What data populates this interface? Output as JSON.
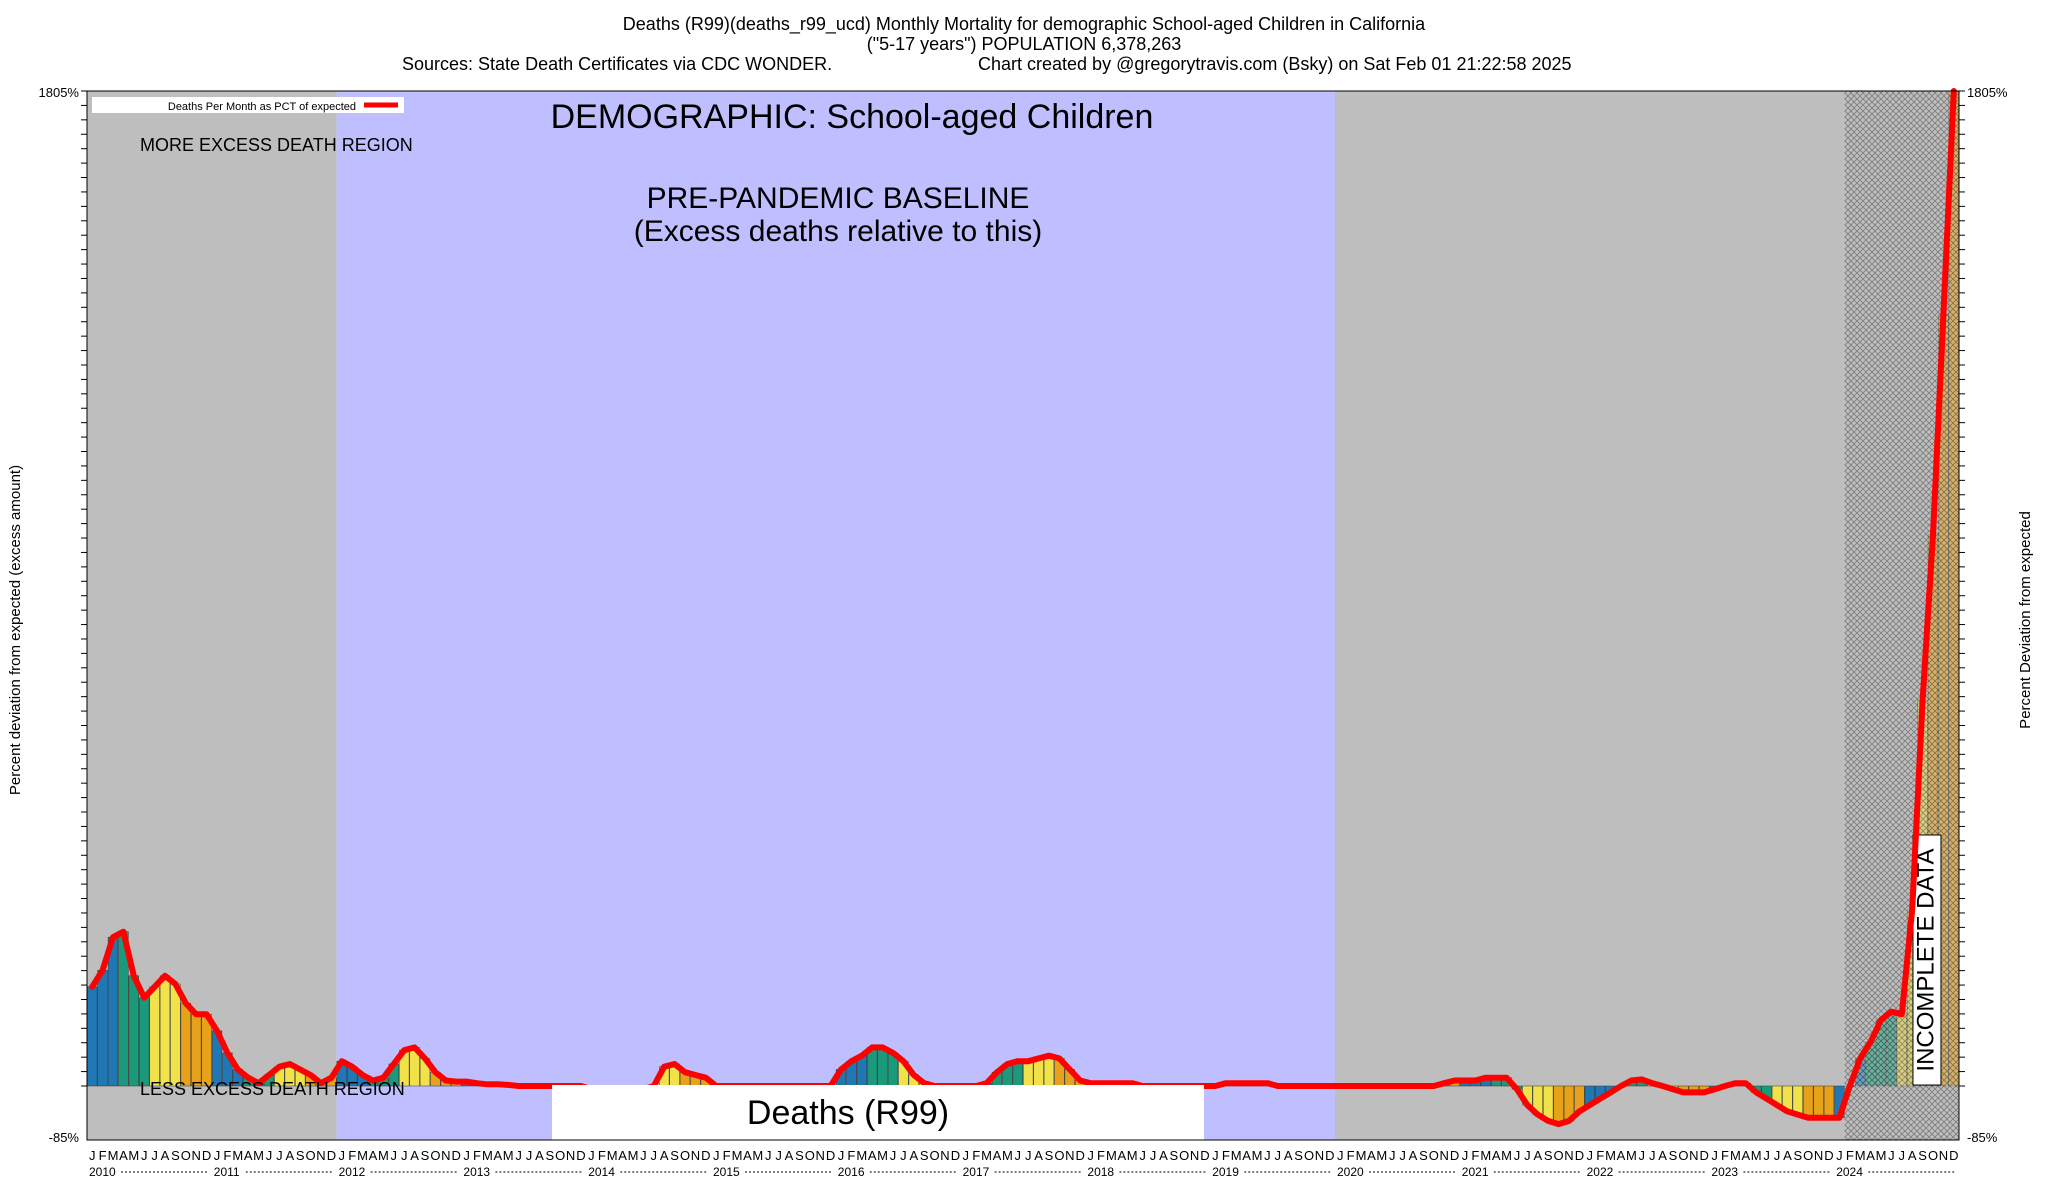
{
  "header": {
    "title_line1": "Deaths (R99)(deaths_r99_ucd) Monthly Mortality for demographic School-aged Children in California",
    "title_line2": "(\"5-17 years\") POPULATION 6,378,263",
    "sources": "Sources: State Death Certificates via CDC WONDER.",
    "credit": "Chart created by @gregorytravis.com (Bsky) on Sat Feb 01 21:22:58 2025"
  },
  "colors": {
    "background": "#ffffff",
    "gray_region": "#bebebe",
    "baseline_region": "#bfbfff",
    "line": "#ff0000",
    "bar_palette": [
      "#1f77b4",
      "#1a9a7a",
      "#f2e24a",
      "#e8a21a"
    ]
  },
  "chart_data": {
    "type": "bar",
    "title": "DEMOGRAPHIC: School-aged Children",
    "subtitle": "Deaths (R99)",
    "ylabel": "Percent deviation from expected (excess amount)",
    "ylabel_right": "Percent Deviation from expected",
    "legend": {
      "label": "Deaths Per Month as PCT of expected",
      "position": "top-left"
    },
    "x_start": "2010-01",
    "x_end": "2024-12",
    "ylim": [
      -85,
      1805
    ],
    "y_tick_min": "-85%",
    "y_tick_max": "1805%",
    "annotations": {
      "more_excess": "MORE EXCESS DEATH REGION",
      "less_excess": "LESS EXCESS DEATH REGION",
      "baseline_line1": "PRE-PANDEMIC BASELINE",
      "baseline_line2": "(Excess deaths relative to this)",
      "incomplete": "INCOMPLETE DATA"
    },
    "regions": [
      {
        "type": "gray",
        "from": "2010-01",
        "to": "2011-12"
      },
      {
        "type": "baseline",
        "from": "2012-01",
        "to": "2019-12"
      },
      {
        "type": "gray",
        "from": "2020-01",
        "to": "2024-12"
      },
      {
        "type": "incomplete",
        "from": "2024-02",
        "to": "2024-12"
      }
    ],
    "month_letters": [
      "J",
      "F",
      "M",
      "A",
      "M",
      "J",
      "J",
      "A",
      "S",
      "O",
      "N",
      "D"
    ],
    "years": [
      "2010",
      "2011",
      "2012",
      "2013",
      "2014",
      "2015",
      "2016",
      "2017",
      "2018",
      "2019",
      "2020",
      "2021",
      "2022",
      "2023",
      "2024"
    ],
    "values": [
      180,
      210,
      270,
      280,
      200,
      160,
      180,
      200,
      185,
      150,
      130,
      130,
      100,
      60,
      30,
      15,
      5,
      20,
      35,
      40,
      30,
      20,
      5,
      15,
      45,
      35,
      20,
      10,
      15,
      40,
      65,
      70,
      50,
      25,
      10,
      8,
      8,
      5,
      3,
      3,
      2,
      0,
      0,
      0,
      0,
      0,
      0,
      0,
      -5,
      -5,
      -5,
      -5,
      -5,
      -5,
      0,
      35,
      40,
      25,
      20,
      15,
      0,
      0,
      0,
      0,
      0,
      0,
      0,
      0,
      0,
      0,
      0,
      0,
      30,
      45,
      55,
      70,
      70,
      60,
      45,
      20,
      5,
      0,
      0,
      0,
      0,
      0,
      5,
      25,
      40,
      45,
      45,
      50,
      55,
      50,
      30,
      10,
      5,
      5,
      5,
      5,
      5,
      0,
      0,
      0,
      0,
      0,
      0,
      0,
      0,
      5,
      5,
      5,
      5,
      5,
      0,
      0,
      0,
      0,
      0,
      0,
      0,
      0,
      0,
      0,
      0,
      0,
      0,
      0,
      0,
      0,
      5,
      10,
      10,
      10,
      15,
      15,
      15,
      -5,
      -30,
      -45,
      -55,
      -60,
      -55,
      -40,
      -30,
      -20,
      -10,
      0,
      10,
      12,
      5,
      0,
      -5,
      -10,
      -10,
      -10,
      -5,
      0,
      5,
      5,
      -10,
      -20,
      -30,
      -40,
      -45,
      -50,
      -50,
      -50,
      -50,
      0,
      50,
      80,
      120,
      135,
      130,
      320,
      700,
      1000,
      1400,
      1805
    ]
  }
}
